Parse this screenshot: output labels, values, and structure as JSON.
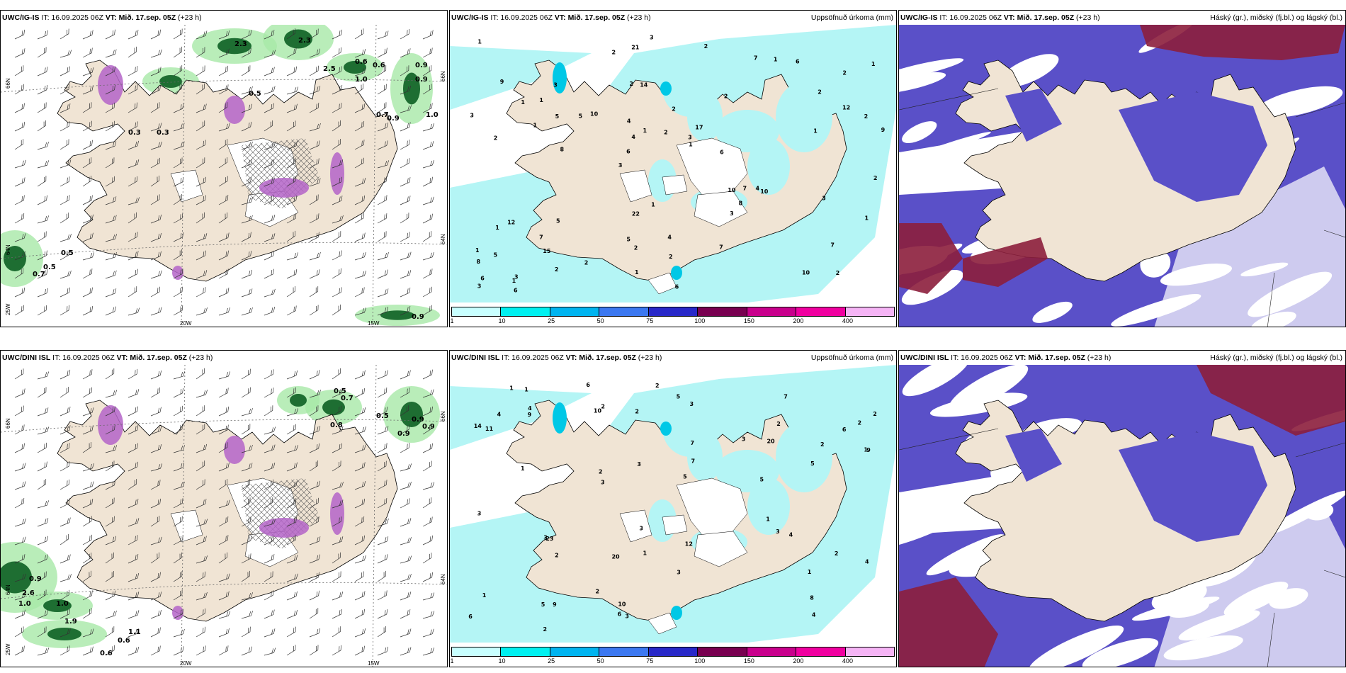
{
  "panels": [
    {
      "model": "UWC/IG-IS",
      "it": "IT: 16.09.2025 06Z",
      "vt_label": "VT:",
      "vt": "Mið. 17.sep. 05Z",
      "lead": "(+23 h)",
      "title_right": ""
    },
    {
      "model": "UWC/IG-IS",
      "it": "IT: 16.09.2025 06Z",
      "vt_label": "VT:",
      "vt": "Mið. 17.sep. 05Z",
      "lead": "(+23 h)",
      "title_right": "Uppsöfnuð úrkoma (mm)"
    },
    {
      "model": "UWC/IG-IS",
      "it": "IT: 16.09.2025 06Z",
      "vt_label": "VT:",
      "vt": "Mið. 17.sep. 05Z",
      "lead": "(+23 h)",
      "title_right": "Háský (gr.), miðský (fj.bl.) og lágský (bl.)"
    },
    {
      "model": "UWC/DINI ISL",
      "it": "IT: 16.09.2025 06Z",
      "vt_label": "VT:",
      "vt": "Mið. 17.sep. 05Z",
      "lead": "(+23 h)",
      "title_right": ""
    },
    {
      "model": "UWC/DINI ISL",
      "it": "IT: 16.09.2025 06Z",
      "vt_label": "VT:",
      "vt": "Mið. 17.sep. 05Z",
      "lead": "(+23 h)",
      "title_right": "Uppsöfnuð úrkoma (mm)"
    },
    {
      "model": "UWC/DINI ISL",
      "it": "IT: 16.09.2025 06Z",
      "vt_label": "VT:",
      "vt": "Mið. 17.sep. 05Z",
      "lead": "(+23 h)",
      "title_right": "Háský (gr.), miðský (fj.bl.) og lágský (bl.)"
    }
  ],
  "axes": {
    "lat_66": "66N",
    "lat_64": "64N",
    "lon_25": "25W",
    "lon_20": "20W",
    "lon_15": "15W"
  },
  "legend": {
    "ticks": [
      "1",
      "10",
      "25",
      "50",
      "75",
      "100",
      "150",
      "200",
      "400"
    ],
    "colors": [
      "#c8ffff",
      "#00f0f0",
      "#00b4f0",
      "#3c78f0",
      "#2828c8",
      "#780050",
      "#c8008c",
      "#f000a0",
      "#f5b4f5"
    ]
  },
  "colors": {
    "land": "#f0e4d4",
    "precip_light": "#b4f5f5",
    "cloud_high": "#8c1e3c",
    "cloud_mid": "#5a50c8",
    "cloud_low": "#ffffff",
    "green_light": "#a8e8a8",
    "green_dark": "#1e6e32",
    "magenta": "#b464c8"
  },
  "precip_values_top": [
    "2",
    "2",
    "2",
    "3",
    "2",
    "3",
    "2",
    "2",
    "12",
    "10",
    "8",
    "15",
    "14",
    "17",
    "10",
    "9",
    "21",
    "9",
    "10",
    "12",
    "6",
    "5",
    "4",
    "3",
    "7",
    "5",
    "10",
    "7",
    "4",
    "6",
    "5",
    "1",
    "3",
    "2",
    "2",
    "3",
    "6",
    "2",
    "1",
    "1",
    "2",
    "1",
    "8",
    "7",
    "7",
    "6",
    "3",
    "4",
    "6",
    "3",
    "8",
    "3",
    "1",
    "1",
    "1",
    "2",
    "2",
    "1",
    "1",
    "22",
    "2",
    "7",
    "5",
    "1",
    "1",
    "1",
    "2",
    "4",
    "2",
    "2",
    "5",
    "6",
    "3",
    "1",
    "1",
    "1"
  ],
  "precip_values_bottom": [
    "2",
    "1",
    "2",
    "2",
    "2",
    "3",
    "5",
    "23",
    "2",
    "2",
    "10",
    "9",
    "11",
    "10",
    "8",
    "7",
    "20",
    "6",
    "14",
    "4",
    "12",
    "5",
    "4",
    "3",
    "6",
    "1",
    "2",
    "3",
    "9",
    "6",
    "5",
    "7",
    "4",
    "4",
    "3",
    "5",
    "3",
    "3",
    "2",
    "1",
    "6",
    "3",
    "7",
    "3",
    "5",
    "2",
    "1",
    "20",
    "3",
    "2",
    "1",
    "1",
    "9",
    "4",
    "3",
    "2",
    "1",
    "1",
    "2"
  ],
  "green_values_top": [
    "2.3",
    "2.3",
    "2.5",
    "0.6",
    "0.6",
    "0.9",
    "0.9",
    "1.0",
    "0.7",
    "0.9",
    "1.0",
    "0.5",
    "0.5",
    "0.7",
    "0.5",
    "0.3",
    "0.3",
    "0.9"
  ],
  "green_values_bottom": [
    "0.5",
    "0.7",
    "0.8",
    "0.5",
    "0.9",
    "0.9",
    "0.9",
    "2.6",
    "1.0",
    "1.0",
    "1.9",
    "1.1",
    "0.6",
    "0.6",
    "0.9"
  ]
}
